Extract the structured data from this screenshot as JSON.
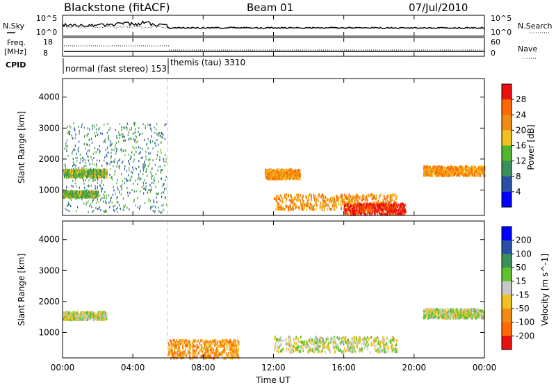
{
  "header": {
    "station": "Blackstone (fitACF)",
    "beam": "Beam 01",
    "date": "07/Jul/2010"
  },
  "panels": {
    "nsky": {
      "label": "N.Sky",
      "ticks": [
        "10^5",
        "10^0"
      ],
      "right_label": "N.Search",
      "right_ticks": [
        "10^5",
        "10^0"
      ]
    },
    "freq": {
      "label_line1": "Freq.",
      "label_line2": "[MHz]",
      "ticks": [
        "18",
        "8"
      ],
      "right_label": "Nave",
      "right_ticks": [
        "60",
        "0"
      ]
    },
    "cpid": {
      "label": "CPID",
      "modes": [
        "normal (fast stereo) 153",
        "themis (tau) 3310"
      ]
    }
  },
  "chart_data": [
    {
      "type": "heatmap",
      "title": "",
      "parameter": "Power",
      "ylabel": "Slant Range [km]",
      "yticks": [
        "1000",
        "2000",
        "3000",
        "4000"
      ],
      "ylim": [
        180,
        4600
      ],
      "colorbar": {
        "label": "Power [dB]",
        "ticks": [
          "4",
          "8",
          "12",
          "16",
          "20",
          "24",
          "28"
        ],
        "colors": [
          "#0000ff",
          "#2a4fa6",
          "#3a8f5a",
          "#53b431",
          "#f0c020",
          "#f08c10",
          "#ff6a00",
          "#e81010"
        ]
      },
      "regions": [
        {
          "t": [
            0.1,
            5.9
          ],
          "r": [
            300,
            3200
          ],
          "level": 2,
          "note": "sparse echoes before 06:00"
        },
        {
          "t": [
            0.0,
            2.5
          ],
          "r": [
            1450,
            1700
          ],
          "level": 3
        },
        {
          "t": [
            0.0,
            2.0
          ],
          "r": [
            800,
            1000
          ],
          "level": 3
        },
        {
          "t": [
            11.5,
            13.5
          ],
          "r": [
            1400,
            1700
          ],
          "level": 5
        },
        {
          "t": [
            12.0,
            19.0
          ],
          "r": [
            400,
            900
          ],
          "level": 5
        },
        {
          "t": [
            16.0,
            19.5
          ],
          "r": [
            250,
            600
          ],
          "level": 7
        },
        {
          "t": [
            20.5,
            24.0
          ],
          "r": [
            1500,
            1800
          ],
          "level": 5
        }
      ]
    },
    {
      "type": "heatmap",
      "title": "",
      "parameter": "Velocity",
      "ylabel": "Slant Range [km]",
      "yticks": [
        "1000",
        "2000",
        "3000",
        "4000"
      ],
      "ylim": [
        180,
        4600
      ],
      "colorbar": {
        "label": "Velocity [m s^-1]",
        "ticks": [
          "200",
          "100",
          "50",
          "15",
          "-15",
          "-50",
          "-100",
          "-200"
        ],
        "colors": [
          "#0000ff",
          "#2a4fa6",
          "#3a8f5a",
          "#60c030",
          "#c8c8c8",
          "#f0c020",
          "#f08c10",
          "#ff6a00",
          "#e81010"
        ]
      },
      "regions": [
        {
          "t": [
            0.0,
            2.5
          ],
          "r": [
            1450,
            1700
          ],
          "level": 4
        },
        {
          "t": [
            12.0,
            19.0
          ],
          "r": [
            400,
            900
          ],
          "level": 4
        },
        {
          "t": [
            20.5,
            24.0
          ],
          "r": [
            1500,
            1800
          ],
          "level": 4
        },
        {
          "t": [
            6.0,
            10.0
          ],
          "r": [
            200,
            800
          ],
          "level": 6
        }
      ]
    }
  ],
  "xaxis": {
    "label": "Time UT",
    "ticks": [
      "00:00",
      "04:00",
      "08:00",
      "12:00",
      "16:00",
      "20:00",
      "00:00"
    ],
    "xlim": [
      0,
      24
    ]
  }
}
